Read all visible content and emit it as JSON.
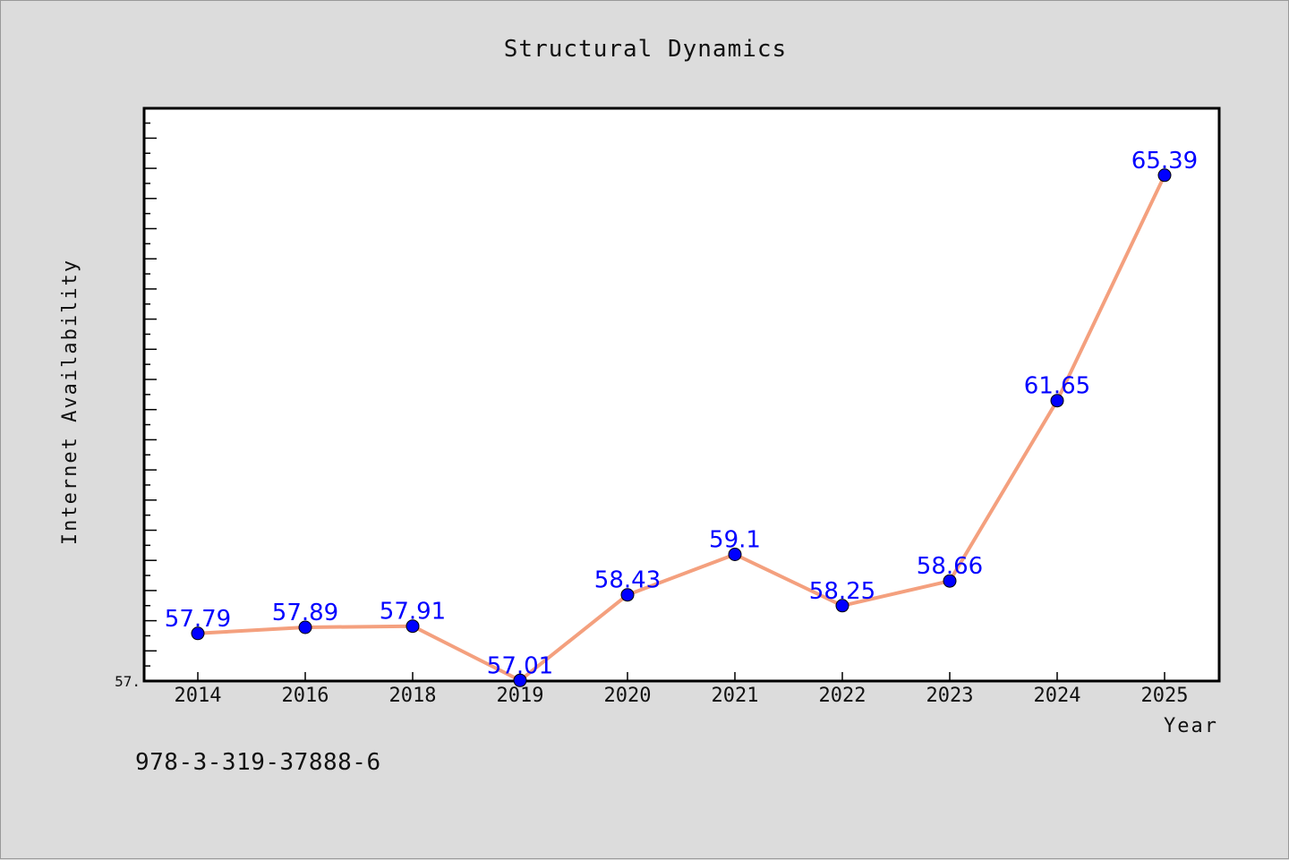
{
  "chart_data": {
    "type": "line",
    "title": "Structural Dynamics",
    "xlabel": "Year",
    "ylabel": "Internet Availability",
    "categories": [
      "2014",
      "2016",
      "2018",
      "2019",
      "2020",
      "2021",
      "2022",
      "2023",
      "2024",
      "2025"
    ],
    "series": [
      {
        "values": [
          57.79,
          57.89,
          57.91,
          57.01,
          58.43,
          59.1,
          58.25,
          58.66,
          61.65,
          65.39
        ],
        "labels": [
          "57.79",
          "57.89",
          "57.91",
          "57.01",
          "58.43",
          "59.1",
          "58.25",
          "58.66",
          "61.65",
          "65.39"
        ],
        "line_color": "#f4a07e",
        "marker_color": "#0000ff"
      }
    ],
    "ylim": [
      57.0,
      66.5
    ],
    "y_tick_label": "57.",
    "grid": false,
    "legend": "none"
  },
  "footer": {
    "note": "978-3-319-37888-6"
  },
  "colors": {
    "background": "#dcdcdc",
    "plot_background": "#ffffff",
    "line": "#f4a07e",
    "marker": "#0000ff",
    "data_label": "#0000ff"
  }
}
